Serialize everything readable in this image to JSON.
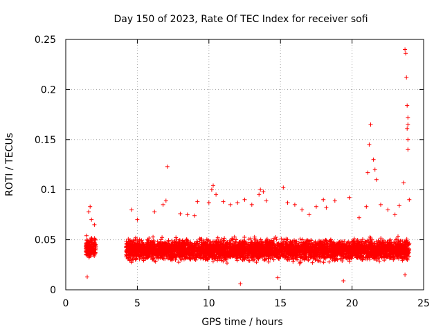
{
  "chart_data": {
    "type": "scatter",
    "title": "Day 150 of 2023, Rate Of TEC Index for receiver sofi",
    "xlabel": "GPS time / hours",
    "ylabel": "ROTI / TECUs",
    "xlim": [
      0,
      25
    ],
    "ylim": [
      0,
      0.25
    ],
    "grid": true,
    "marker": "+",
    "color": "#ff0000",
    "xticks": [
      0,
      5,
      10,
      15,
      20,
      25
    ],
    "xtick_labels": [
      "0",
      "5",
      "10",
      "15",
      "20",
      "25"
    ],
    "yticks": [
      0,
      0.05,
      0.1,
      0.15,
      0.2,
      0.25
    ],
    "ytick_labels": [
      "0",
      "0.05",
      "0.1",
      "0.15",
      "0.2",
      "0.25"
    ],
    "series": [
      {
        "name": "sofi",
        "description": "dense cloud of ROTI samples; clusters listed with typical range",
        "clusters": [
          {
            "x_range": [
              1.4,
              2.1
            ],
            "y_range": [
              0.02,
              0.075
            ],
            "y_center": 0.042
          },
          {
            "x_range": [
              4.2,
              24.0
            ],
            "y_range": [
              0.015,
              0.07
            ],
            "y_center": 0.04
          }
        ],
        "points": [
          [
            1.5,
            0.013
          ],
          [
            1.7,
            0.083
          ],
          [
            1.8,
            0.07
          ],
          [
            2.0,
            0.065
          ],
          [
            1.6,
            0.078
          ],
          [
            4.6,
            0.08
          ],
          [
            5.0,
            0.07
          ],
          [
            6.2,
            0.078
          ],
          [
            6.8,
            0.085
          ],
          [
            7.0,
            0.089
          ],
          [
            7.1,
            0.123
          ],
          [
            8.0,
            0.076
          ],
          [
            8.5,
            0.075
          ],
          [
            9.0,
            0.074
          ],
          [
            9.2,
            0.088
          ],
          [
            10.0,
            0.087
          ],
          [
            10.2,
            0.1
          ],
          [
            10.3,
            0.104
          ],
          [
            10.5,
            0.095
          ],
          [
            11.0,
            0.088
          ],
          [
            11.5,
            0.085
          ],
          [
            12.0,
            0.087
          ],
          [
            12.2,
            0.006
          ],
          [
            12.5,
            0.09
          ],
          [
            13.0,
            0.085
          ],
          [
            13.5,
            0.095
          ],
          [
            13.6,
            0.1
          ],
          [
            13.8,
            0.098
          ],
          [
            14.0,
            0.089
          ],
          [
            14.8,
            0.012
          ],
          [
            15.2,
            0.102
          ],
          [
            15.5,
            0.087
          ],
          [
            16.0,
            0.085
          ],
          [
            16.5,
            0.08
          ],
          [
            17.0,
            0.075
          ],
          [
            17.5,
            0.083
          ],
          [
            18.0,
            0.09
          ],
          [
            18.2,
            0.082
          ],
          [
            18.8,
            0.089
          ],
          [
            19.4,
            0.009
          ],
          [
            19.8,
            0.092
          ],
          [
            20.5,
            0.072
          ],
          [
            21.0,
            0.083
          ],
          [
            21.1,
            0.117
          ],
          [
            21.2,
            0.145
          ],
          [
            21.3,
            0.165
          ],
          [
            21.5,
            0.13
          ],
          [
            21.6,
            0.12
          ],
          [
            21.7,
            0.11
          ],
          [
            22.0,
            0.085
          ],
          [
            22.5,
            0.08
          ],
          [
            23.0,
            0.075
          ],
          [
            23.3,
            0.084
          ],
          [
            23.6,
            0.107
          ],
          [
            23.7,
            0.24
          ],
          [
            23.75,
            0.236
          ],
          [
            23.8,
            0.212
          ],
          [
            23.85,
            0.184
          ],
          [
            23.9,
            0.172
          ],
          [
            23.9,
            0.165
          ],
          [
            23.85,
            0.161
          ],
          [
            23.9,
            0.15
          ],
          [
            23.9,
            0.14
          ],
          [
            24.0,
            0.09
          ],
          [
            23.7,
            0.015
          ]
        ]
      }
    ]
  }
}
